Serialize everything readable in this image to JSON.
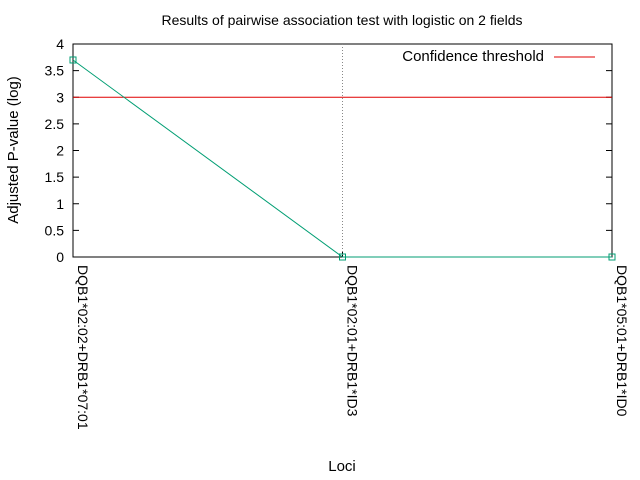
{
  "chart_data": {
    "type": "line",
    "title": "Results of pairwise association test with logistic on 2 fields",
    "xlabel": "Loci",
    "ylabel": "Adjusted P-value (log)",
    "categories": [
      "DQB1*02:02+DRB1*07:01",
      "DQB1*02:01+DRB1*ID3",
      "DQB1*05:01+DRB1*ID0"
    ],
    "ylim": [
      0,
      4
    ],
    "yticks": [
      "0",
      "0.5",
      "1",
      "1.5",
      "2",
      "2.5",
      "3",
      "3.5",
      "4"
    ],
    "series": [
      {
        "values": [
          3.7,
          0,
          0
        ],
        "color": "#009e73"
      }
    ],
    "threshold": {
      "name": "Confidence threshold",
      "value": 3.0,
      "color": "#e00000"
    },
    "legend_position": "top-right",
    "grid": false
  }
}
